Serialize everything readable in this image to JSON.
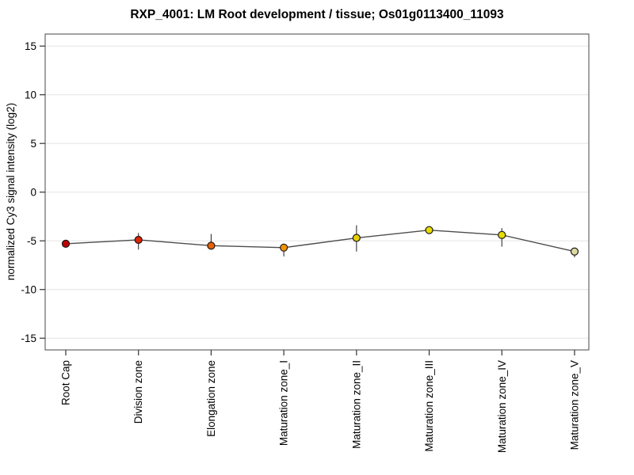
{
  "window": {
    "background": "#ffffff"
  },
  "chart_data": {
    "type": "line",
    "title": "RXP_4001: LM Root development / tissue; Os01g0113400_11093",
    "ylabel": "normalized Cy3 signal intensity (log2)",
    "xlabel": "",
    "categories": [
      "Root Cap",
      "Division zone",
      "Elongation zone",
      "Maturation zone_I",
      "Maturation zone_II",
      "Maturation zone_III",
      "Maturation zone_IV",
      "Maturation zone_V"
    ],
    "series": [
      {
        "name": "normalized Cy3 signal intensity (log2)",
        "values": [
          -5.3,
          -4.9,
          -5.5,
          -5.7,
          -4.7,
          -3.9,
          -4.4,
          -6.1
        ],
        "error_high": [
          -5.0,
          -4.2,
          -4.3,
          -5.3,
          -3.4,
          -3.5,
          -3.7,
          -5.7
        ],
        "error_low": [
          -5.6,
          -5.9,
          -5.9,
          -6.6,
          -6.1,
          -4.3,
          -5.6,
          -6.7
        ],
        "point_colors": [
          "#c00000",
          "#dc2300",
          "#ea5f00",
          "#f39000",
          "#e4d000",
          "#e9dc00",
          "#e9dc00",
          "#dddaa0"
        ]
      }
    ],
    "yticks": [
      15,
      10,
      5,
      0,
      -5,
      -10,
      -15
    ],
    "ylim": [
      -16.2,
      16.2
    ],
    "grid": true,
    "legend_position": "none",
    "colors": {
      "line": "#4d4d4d",
      "error_bar": "#333333",
      "grid": "#e7e7e7",
      "box_border": "#666666",
      "tick_mark": "#333333",
      "marker_outline": "#1a1a1a",
      "text": "#000000"
    }
  }
}
